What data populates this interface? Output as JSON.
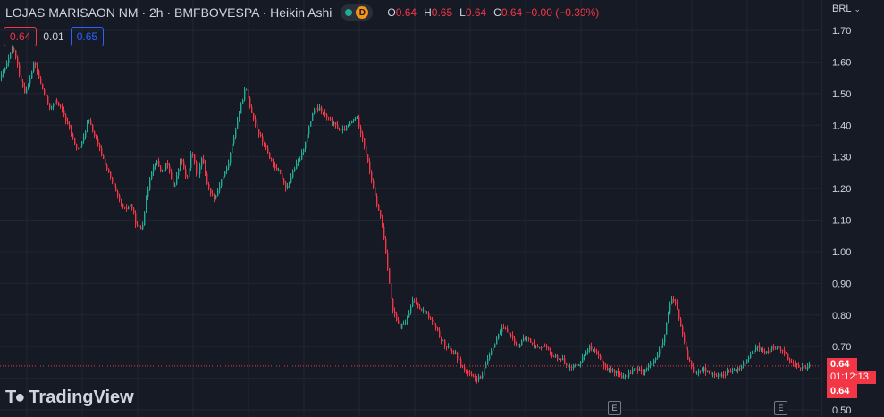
{
  "header": {
    "title": "LOJAS MARISAON NM · 2h · BMFBOVESPA · Heikin Ashi",
    "status_letter": "D",
    "ohlc": [
      {
        "key": "O",
        "value": "0.64"
      },
      {
        "key": "H",
        "value": "0.65"
      },
      {
        "key": "L",
        "value": "0.64"
      },
      {
        "key": "C",
        "value": "0.64 −0.00 (−0.39%)"
      }
    ]
  },
  "price_boxes": {
    "sell": "0.64",
    "spread": "0.01",
    "buy": "0.65"
  },
  "currency": "BRL",
  "last_price_tag": {
    "price": "0.64",
    "countdown": "01:12:13",
    "price2": "0.64"
  },
  "logo": {
    "text": "TradingView"
  },
  "colors": {
    "background": "#161a25",
    "up": "#22ab94",
    "down": "#f23645",
    "grid": "#232632",
    "text": "#d1d4dc"
  },
  "chart_data": {
    "type": "candlestick",
    "style": "Heikin Ashi",
    "y_axis": {
      "ticks": [
        "1.70",
        "1.60",
        "1.50",
        "1.40",
        "1.30",
        "1.20",
        "1.10",
        "1.00",
        "0.90",
        "0.80",
        "0.70",
        "0.60",
        "0.50"
      ],
      "ylim": [
        0.5,
        1.7
      ]
    },
    "grid": true,
    "last_price": 0.64,
    "earnings_markers": [
      "E",
      "E"
    ],
    "price_path": [
      [
        0,
        1.55
      ],
      [
        8,
        1.6
      ],
      [
        14,
        1.65
      ],
      [
        22,
        1.55
      ],
      [
        28,
        1.5
      ],
      [
        38,
        1.6
      ],
      [
        46,
        1.52
      ],
      [
        56,
        1.45
      ],
      [
        62,
        1.48
      ],
      [
        70,
        1.44
      ],
      [
        78,
        1.38
      ],
      [
        86,
        1.32
      ],
      [
        92,
        1.35
      ],
      [
        98,
        1.42
      ],
      [
        106,
        1.36
      ],
      [
        114,
        1.3
      ],
      [
        122,
        1.24
      ],
      [
        130,
        1.18
      ],
      [
        138,
        1.13
      ],
      [
        146,
        1.15
      ],
      [
        152,
        1.08
      ],
      [
        158,
        1.07
      ],
      [
        162,
        1.15
      ],
      [
        168,
        1.25
      ],
      [
        174,
        1.29
      ],
      [
        180,
        1.25
      ],
      [
        186,
        1.28
      ],
      [
        194,
        1.2
      ],
      [
        202,
        1.3
      ],
      [
        208,
        1.22
      ],
      [
        214,
        1.32
      ],
      [
        220,
        1.24
      ],
      [
        226,
        1.3
      ],
      [
        232,
        1.2
      ],
      [
        240,
        1.17
      ],
      [
        246,
        1.22
      ],
      [
        254,
        1.27
      ],
      [
        262,
        1.38
      ],
      [
        268,
        1.45
      ],
      [
        274,
        1.52
      ],
      [
        280,
        1.45
      ],
      [
        288,
        1.38
      ],
      [
        296,
        1.33
      ],
      [
        304,
        1.28
      ],
      [
        312,
        1.25
      ],
      [
        320,
        1.2
      ],
      [
        328,
        1.26
      ],
      [
        336,
        1.3
      ],
      [
        344,
        1.38
      ],
      [
        350,
        1.45
      ],
      [
        358,
        1.45
      ],
      [
        366,
        1.42
      ],
      [
        374,
        1.4
      ],
      [
        382,
        1.38
      ],
      [
        390,
        1.4
      ],
      [
        398,
        1.43
      ],
      [
        406,
        1.35
      ],
      [
        414,
        1.24
      ],
      [
        420,
        1.16
      ],
      [
        426,
        1.1
      ],
      [
        432,
        0.98
      ],
      [
        438,
        0.82
      ],
      [
        446,
        0.76
      ],
      [
        454,
        0.78
      ],
      [
        462,
        0.85
      ],
      [
        470,
        0.82
      ],
      [
        478,
        0.8
      ],
      [
        488,
        0.75
      ],
      [
        498,
        0.7
      ],
      [
        508,
        0.68
      ],
      [
        518,
        0.63
      ],
      [
        528,
        0.6
      ],
      [
        538,
        0.6
      ],
      [
        546,
        0.67
      ],
      [
        554,
        0.72
      ],
      [
        562,
        0.76
      ],
      [
        570,
        0.74
      ],
      [
        578,
        0.7
      ],
      [
        588,
        0.73
      ],
      [
        598,
        0.7
      ],
      [
        608,
        0.7
      ],
      [
        618,
        0.67
      ],
      [
        628,
        0.66
      ],
      [
        638,
        0.63
      ],
      [
        648,
        0.65
      ],
      [
        658,
        0.7
      ],
      [
        668,
        0.67
      ],
      [
        678,
        0.63
      ],
      [
        688,
        0.62
      ],
      [
        698,
        0.6
      ],
      [
        708,
        0.63
      ],
      [
        718,
        0.62
      ],
      [
        726,
        0.64
      ],
      [
        734,
        0.67
      ],
      [
        742,
        0.72
      ],
      [
        750,
        0.85
      ],
      [
        756,
        0.83
      ],
      [
        762,
        0.75
      ],
      [
        768,
        0.67
      ],
      [
        776,
        0.62
      ],
      [
        786,
        0.63
      ],
      [
        796,
        0.61
      ],
      [
        806,
        0.61
      ],
      [
        816,
        0.62
      ],
      [
        826,
        0.63
      ],
      [
        836,
        0.66
      ],
      [
        846,
        0.7
      ],
      [
        856,
        0.68
      ],
      [
        866,
        0.7
      ],
      [
        876,
        0.69
      ],
      [
        884,
        0.65
      ],
      [
        892,
        0.64
      ],
      [
        900,
        0.63
      ],
      [
        906,
        0.64
      ]
    ]
  }
}
